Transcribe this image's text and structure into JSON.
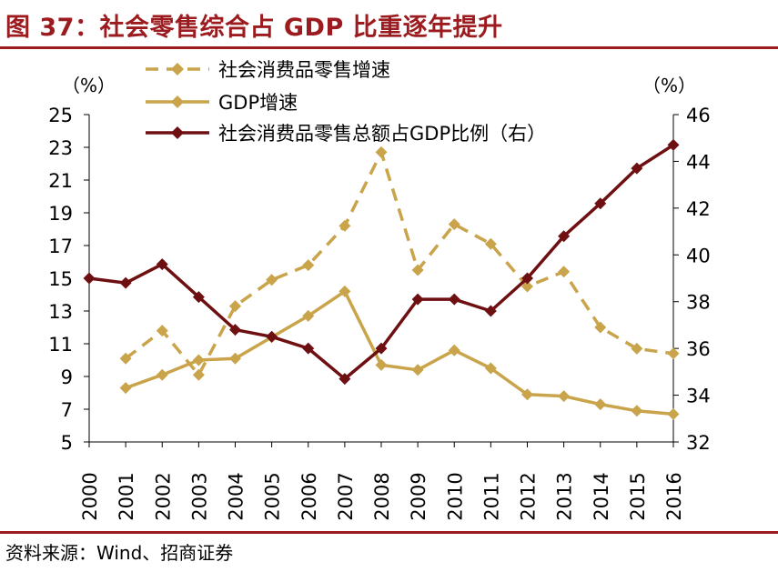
{
  "title": "图 37：社会零售综合占 GDP 比重逐年提升",
  "source": "资料来源：Wind、招商证券",
  "colors": {
    "title": "#9b1b1f",
    "retail_growth": "#c9a44a",
    "gdp_growth": "#c9a44a",
    "retail_share": "#6e0f12"
  },
  "chart_data": {
    "type": "line",
    "left_axis_unit": "（%）",
    "right_axis_unit": "（%）",
    "categories": [
      "2000",
      "2001",
      "2002",
      "2003",
      "2004",
      "2005",
      "2006",
      "2007",
      "2008",
      "2009",
      "2010",
      "2011",
      "2012",
      "2013",
      "2014",
      "2015",
      "2016"
    ],
    "ylim_left": [
      5,
      25
    ],
    "yticks_left": [
      5,
      7,
      9,
      11,
      13,
      15,
      17,
      19,
      21,
      23,
      25
    ],
    "ylim_right": [
      32,
      46
    ],
    "yticks_right": [
      32,
      34,
      36,
      38,
      40,
      42,
      44,
      46
    ],
    "series": [
      {
        "name": "社会消费品零售增速",
        "axis": "left",
        "style": "dashed",
        "values": [
          null,
          10.1,
          11.8,
          9.1,
          13.3,
          14.9,
          15.8,
          18.2,
          22.7,
          15.5,
          18.3,
          17.1,
          14.5,
          15.4,
          12.0,
          10.7,
          10.4
        ]
      },
      {
        "name": "GDP增速",
        "axis": "left",
        "style": "solid",
        "values": [
          null,
          8.3,
          9.1,
          10.0,
          10.1,
          11.4,
          12.7,
          14.2,
          9.7,
          9.4,
          10.6,
          9.5,
          7.9,
          7.8,
          7.3,
          6.9,
          6.7
        ]
      },
      {
        "name": "社会消费品零售总额占GDP比例（右）",
        "axis": "right",
        "style": "solid",
        "values": [
          39.0,
          38.8,
          39.6,
          38.2,
          36.8,
          36.5,
          36.0,
          34.7,
          36.0,
          38.1,
          38.1,
          37.6,
          39.0,
          40.8,
          42.2,
          43.7,
          44.7
        ]
      }
    ]
  }
}
